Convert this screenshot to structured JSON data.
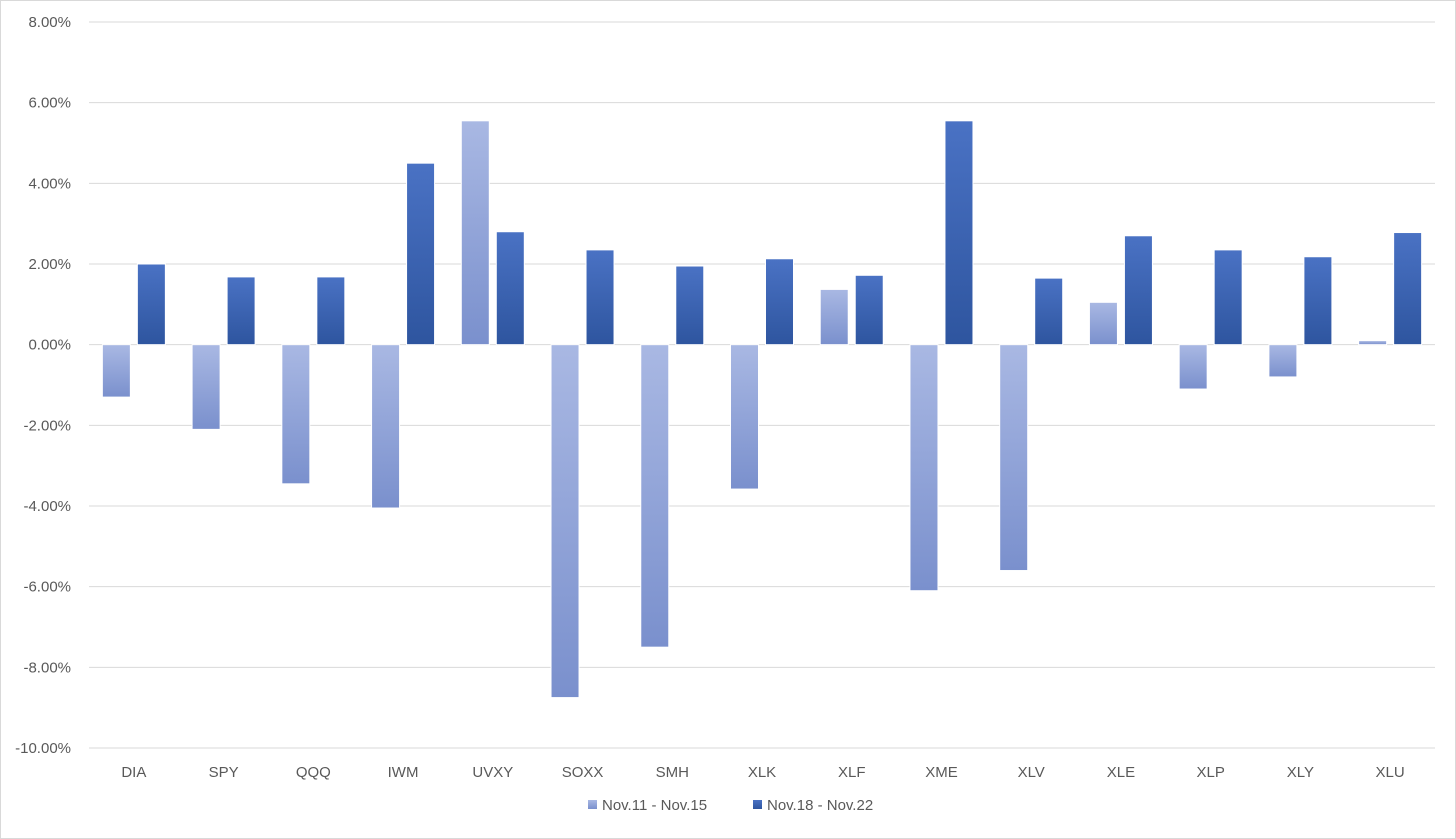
{
  "chart_data": {
    "type": "bar",
    "categories": [
      "DIA",
      "SPY",
      "QQQ",
      "IWM",
      "UVXY",
      "SOXX",
      "SMH",
      "XLK",
      "XLF",
      "XME",
      "XLV",
      "XLE",
      "XLP",
      "XLY",
      "XLU"
    ],
    "series": [
      {
        "name": "Nov.11 - Nov.15",
        "values": [
          -1.3,
          -2.1,
          -3.45,
          -4.05,
          5.55,
          -8.75,
          -7.5,
          -3.58,
          1.37,
          -6.1,
          -5.6,
          1.05,
          -1.1,
          -0.8,
          0.1
        ],
        "color_top": "#a9b8e3",
        "color_bottom": "#7a90cd"
      },
      {
        "name": "Nov.18 - Nov.22",
        "values": [
          2.0,
          1.68,
          1.68,
          4.5,
          2.8,
          2.35,
          1.95,
          2.13,
          1.72,
          5.55,
          1.65,
          2.7,
          2.35,
          2.18,
          2.78
        ],
        "color_top": "#4a72c4",
        "color_bottom": "#2e559f"
      }
    ],
    "y_ticks": [
      "8.00%",
      "6.00%",
      "4.00%",
      "2.00%",
      "0.00%",
      "-2.00%",
      "-4.00%",
      "-6.00%",
      "-8.00%",
      "-10.00%"
    ],
    "ylim": [
      -10,
      8
    ],
    "grid": true,
    "legend_position": "bottom-center",
    "colors": {
      "gridline": "#d9d9d9",
      "zero_line": "#d9d9d9",
      "text": "#595959"
    }
  }
}
